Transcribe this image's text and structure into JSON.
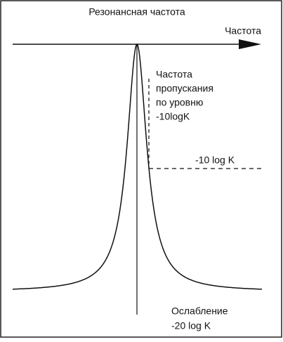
{
  "resonance_label": "Резонансная частота",
  "axis_label": "Частота",
  "passband_label": [
    "Частота",
    "пропускания",
    "по уровню",
    "-10logK"
  ],
  "level_label": "-10 log K",
  "attenuation_label": [
    "Ослабление",
    "-20 log K"
  ]
}
